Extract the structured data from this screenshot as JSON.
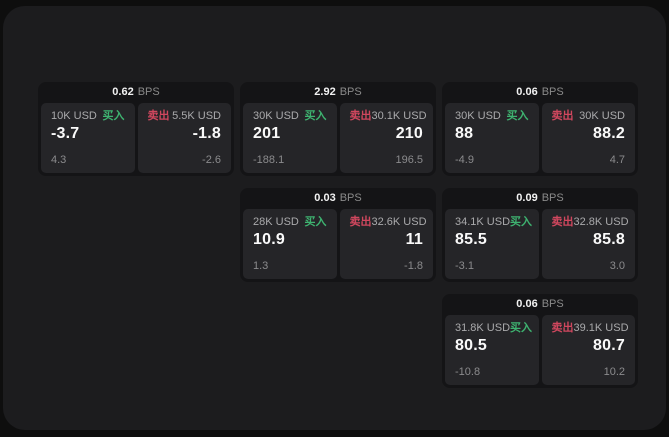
{
  "theme": {
    "page_bg": "#0e0e0e",
    "container_bg": "#1c1c1e",
    "card_bg": "#141416",
    "panel_bg": "#252528",
    "buy_color": "#3eb370",
    "sell_color": "#d0475e",
    "value_color": "#fafafa",
    "label_color": "#aaaaac",
    "muted_color": "#8b8b8d"
  },
  "labels": {
    "bps": "BPS",
    "buy": "买入",
    "sell": "卖出"
  },
  "cards": [
    {
      "bps": "0.62",
      "buy": {
        "amount": "10K USD",
        "value": "-3.7",
        "delta": "4.3"
      },
      "sell": {
        "amount": "5.5K USD",
        "value": "-1.8",
        "delta": "-2.6"
      }
    },
    {
      "bps": "2.92",
      "buy": {
        "amount": "30K USD",
        "value": "201",
        "delta": "-188.1"
      },
      "sell": {
        "amount": "30.1K USD",
        "value": "210",
        "delta": "196.5"
      }
    },
    {
      "bps": "0.06",
      "buy": {
        "amount": "30K USD",
        "value": "88",
        "delta": "-4.9"
      },
      "sell": {
        "amount": "30K USD",
        "value": "88.2",
        "delta": "4.7"
      }
    },
    {
      "bps": "0.03",
      "buy": {
        "amount": "28K USD",
        "value": "10.9",
        "delta": "1.3"
      },
      "sell": {
        "amount": "32.6K USD",
        "value": "11",
        "delta": "-1.8"
      }
    },
    {
      "bps": "0.09",
      "buy": {
        "amount": "34.1K USD",
        "value": "85.5",
        "delta": "-3.1"
      },
      "sell": {
        "amount": "32.8K USD",
        "value": "85.8",
        "delta": "3.0"
      }
    },
    {
      "bps": "0.06",
      "buy": {
        "amount": "31.8K USD",
        "value": "80.5",
        "delta": "-10.8"
      },
      "sell": {
        "amount": "39.1K USD",
        "value": "80.7",
        "delta": "10.2"
      }
    }
  ]
}
